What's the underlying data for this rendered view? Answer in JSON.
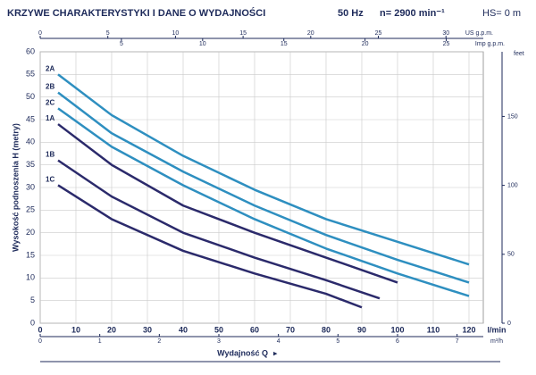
{
  "chart_data": {
    "type": "line",
    "title": "KRZYWE CHARAKTERYSTYKI I DANE O WYDAJNOŚCI",
    "frequency": "50 Hz",
    "speed": "n= 2900 min⁻¹",
    "suction": "HS= 0 m",
    "xlabel": "Wydajność Q",
    "xunit": "l/min",
    "ylabel": "Wysokość podnoszenia H  (metry)",
    "xlim": [
      0,
      124
    ],
    "xticks": [
      0,
      10,
      20,
      30,
      40,
      50,
      60,
      70,
      80,
      90,
      100,
      110,
      120
    ],
    "ylim": [
      0,
      60
    ],
    "yticks": [
      0,
      5,
      10,
      15,
      20,
      25,
      30,
      35,
      40,
      45,
      50,
      55,
      60
    ],
    "grid": true,
    "x_us": {
      "label": "US g.p.m.",
      "lim": [
        0,
        32.76
      ],
      "ticks": [
        0,
        5,
        10,
        15,
        20,
        25,
        30
      ]
    },
    "x_imp": {
      "label": "Imp g.p.m.",
      "lim": [
        0,
        27.28
      ],
      "ticks": [
        5,
        10,
        15,
        20,
        25
      ]
    },
    "x_m3h": {
      "label": "m³/h",
      "lim": [
        0,
        7.44
      ],
      "ticks": [
        0,
        1,
        2,
        3,
        4,
        5,
        6,
        7
      ]
    },
    "y2label": "feet",
    "y2lim": [
      0,
      196.9
    ],
    "y2ticks": [
      0,
      50,
      100,
      150
    ],
    "series": [
      {
        "name": "2A",
        "color": "#2e8fc0",
        "x": [
          5,
          20,
          40,
          60,
          80,
          100,
          120
        ],
        "values": [
          55,
          46,
          37,
          29.5,
          23,
          18,
          13
        ]
      },
      {
        "name": "2B",
        "color": "#2e8fc0",
        "x": [
          5,
          20,
          40,
          60,
          80,
          100,
          120
        ],
        "values": [
          51,
          42,
          33.5,
          26,
          19.5,
          14,
          9
        ]
      },
      {
        "name": "2C",
        "color": "#2e8fc0",
        "x": [
          5,
          20,
          40,
          60,
          80,
          100,
          120
        ],
        "values": [
          47.5,
          39,
          30.5,
          23,
          16.5,
          11,
          6
        ]
      },
      {
        "name": "1A",
        "color": "#2b2a6b",
        "x": [
          5,
          20,
          40,
          60,
          80,
          100
        ],
        "values": [
          44,
          35,
          26,
          20,
          14.5,
          9
        ]
      },
      {
        "name": "1B",
        "color": "#2b2a6b",
        "x": [
          5,
          20,
          40,
          60,
          80,
          95
        ],
        "values": [
          36,
          28,
          20,
          14.5,
          9.5,
          5.5
        ]
      },
      {
        "name": "1C",
        "color": "#2b2a6b",
        "x": [
          5,
          20,
          40,
          60,
          80,
          90
        ],
        "values": [
          30.5,
          23,
          16,
          11,
          6.5,
          3.5
        ]
      }
    ]
  }
}
